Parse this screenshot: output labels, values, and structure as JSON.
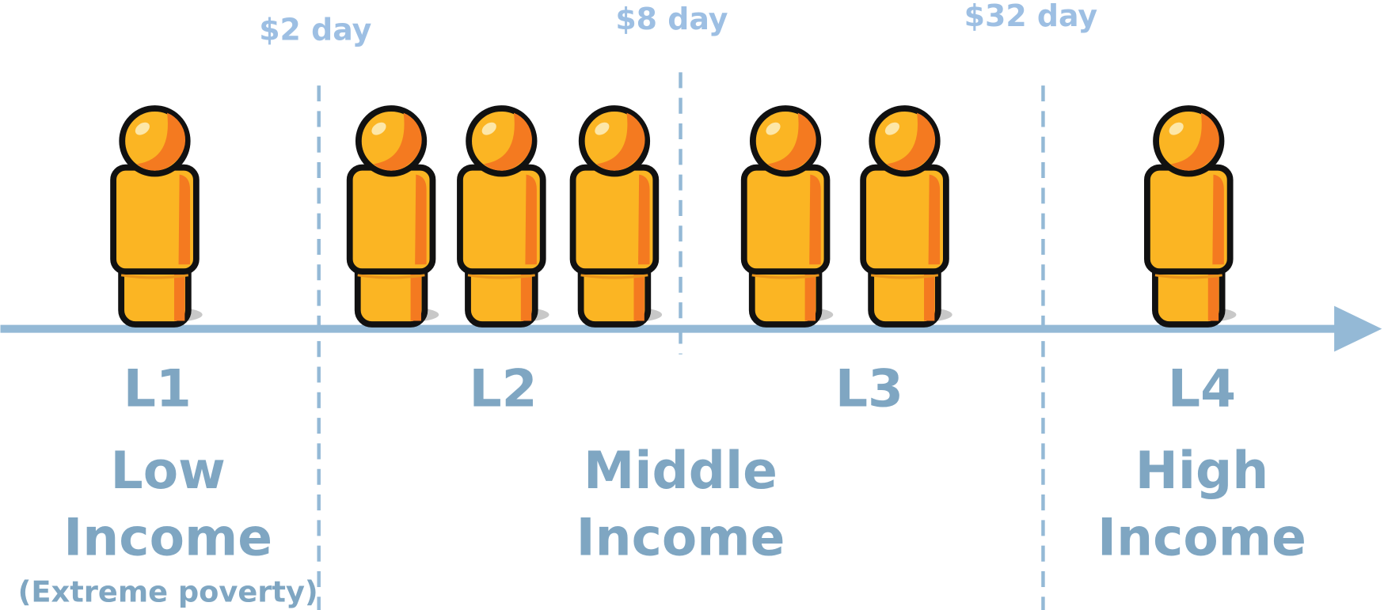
{
  "thresholds": [
    "$2 day",
    "$8 day",
    "$32 day"
  ],
  "levels": [
    "L1",
    "L2",
    "L3",
    "L4"
  ],
  "groups": [
    {
      "lines": [
        "Low",
        "Income"
      ],
      "note": "(Extreme poverty)"
    },
    {
      "lines": [
        "Middle",
        "Income"
      ]
    },
    {
      "lines": [
        "High",
        "Income"
      ]
    }
  ]
}
